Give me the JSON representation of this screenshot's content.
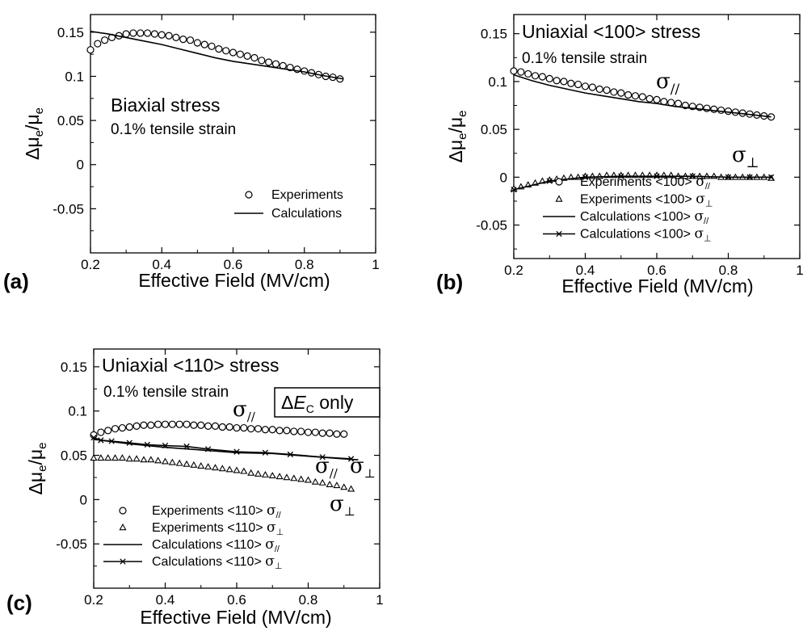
{
  "chart_data": [
    {
      "type": "scatter",
      "panel_label": "(a)",
      "xlabel": "Effective Field (MV/cm)",
      "ylabel": {
        "main": "Δμ",
        "sub1": "e",
        "slash": "/μ",
        "sub2": "e"
      },
      "xlim": [
        0.2,
        1.0
      ],
      "ylim": [
        -0.1,
        0.17
      ],
      "xticks": [
        "0.2",
        "0.4",
        "0.6",
        "0.8",
        "1"
      ],
      "yticks": [
        "-0.05",
        "0",
        "0.05",
        "0.1",
        "0.15"
      ],
      "annotations": [
        "Biaxial stress",
        "0.1% tensile strain"
      ],
      "legend": {
        "position": "bottom-right",
        "entries": [
          "Experiments",
          "Calculations"
        ]
      },
      "series": [
        {
          "name": "Experiments",
          "marker": "circle",
          "x": [
            0.2,
            0.22,
            0.24,
            0.26,
            0.28,
            0.3,
            0.32,
            0.34,
            0.36,
            0.38,
            0.4,
            0.42,
            0.44,
            0.46,
            0.48,
            0.5,
            0.52,
            0.54,
            0.56,
            0.58,
            0.6,
            0.62,
            0.64,
            0.66,
            0.68,
            0.7,
            0.72,
            0.74,
            0.76,
            0.78,
            0.8,
            0.82,
            0.84,
            0.86,
            0.88,
            0.9
          ],
          "y": [
            0.13,
            0.137,
            0.141,
            0.144,
            0.146,
            0.148,
            0.149,
            0.149,
            0.149,
            0.148,
            0.147,
            0.146,
            0.144,
            0.142,
            0.141,
            0.138,
            0.136,
            0.134,
            0.131,
            0.129,
            0.127,
            0.125,
            0.123,
            0.121,
            0.118,
            0.116,
            0.114,
            0.112,
            0.11,
            0.108,
            0.106,
            0.104,
            0.102,
            0.1,
            0.099,
            0.097
          ]
        },
        {
          "name": "Calculations",
          "marker": "line",
          "x": [
            0.2,
            0.25,
            0.3,
            0.35,
            0.4,
            0.45,
            0.5,
            0.55,
            0.6,
            0.65,
            0.7,
            0.75,
            0.8,
            0.85,
            0.91
          ],
          "y": [
            0.151,
            0.148,
            0.144,
            0.14,
            0.136,
            0.131,
            0.126,
            0.121,
            0.117,
            0.114,
            0.111,
            0.108,
            0.105,
            0.101,
            0.097
          ]
        }
      ]
    },
    {
      "type": "scatter",
      "panel_label": "(b)",
      "xlabel": "Effective Field (MV/cm)",
      "ylabel": {
        "main": "Δμ",
        "sub1": "e",
        "slash": "/μ",
        "sub2": "e"
      },
      "xlim": [
        0.2,
        1.0
      ],
      "ylim": [
        -0.085,
        0.17
      ],
      "xticks": [
        "0.2",
        "0.4",
        "0.6",
        "0.8",
        "1"
      ],
      "yticks": [
        "-0.05",
        "0",
        "0.05",
        "0.1",
        "0.15"
      ],
      "annotations": [
        "Uniaxial <100> stress",
        "0.1% tensile strain"
      ],
      "curve_labels": [
        {
          "base": "σ",
          "sub": "//"
        },
        {
          "base": "σ",
          "sub": "⊥"
        }
      ],
      "legend": {
        "position": "bottom-right",
        "entries": [
          {
            "text": "Experiments <100> ",
            "base": "σ",
            "sub": "//"
          },
          {
            "text": "Experiments <100> ",
            "base": "σ",
            "sub": "⊥"
          },
          {
            "text": "Calculations <100> ",
            "base": "σ",
            "sub": "//"
          },
          {
            "text": "Calculations <100> ",
            "base": "σ",
            "sub": "⊥"
          }
        ]
      },
      "series": [
        {
          "name": "Experiments <100> σ//",
          "marker": "circle",
          "x": [
            0.2,
            0.22,
            0.24,
            0.26,
            0.28,
            0.3,
            0.32,
            0.34,
            0.36,
            0.38,
            0.4,
            0.42,
            0.44,
            0.46,
            0.48,
            0.5,
            0.52,
            0.54,
            0.56,
            0.58,
            0.6,
            0.62,
            0.64,
            0.66,
            0.68,
            0.7,
            0.72,
            0.74,
            0.76,
            0.78,
            0.8,
            0.82,
            0.84,
            0.86,
            0.88,
            0.9,
            0.92
          ],
          "y": [
            0.111,
            0.11,
            0.108,
            0.106,
            0.105,
            0.103,
            0.101,
            0.1,
            0.098,
            0.097,
            0.095,
            0.094,
            0.092,
            0.091,
            0.089,
            0.088,
            0.086,
            0.085,
            0.084,
            0.082,
            0.081,
            0.079,
            0.078,
            0.077,
            0.075,
            0.074,
            0.073,
            0.072,
            0.071,
            0.07,
            0.069,
            0.068,
            0.067,
            0.066,
            0.065,
            0.064,
            0.063
          ]
        },
        {
          "name": "Experiments <100> σ⊥",
          "marker": "triangle",
          "x": [
            0.2,
            0.22,
            0.24,
            0.26,
            0.28,
            0.3,
            0.32,
            0.34,
            0.36,
            0.38,
            0.4,
            0.42,
            0.44,
            0.46,
            0.48,
            0.5,
            0.52,
            0.54,
            0.56,
            0.58,
            0.6,
            0.62,
            0.64,
            0.66,
            0.68,
            0.7,
            0.72,
            0.74,
            0.76,
            0.78,
            0.8,
            0.82,
            0.84,
            0.86,
            0.88,
            0.9,
            0.92
          ],
          "y": [
            -0.012,
            -0.01,
            -0.008,
            -0.006,
            -0.004,
            -0.003,
            -0.002,
            -0.001,
            0.0,
            0.0,
            0.001,
            0.001,
            0.001,
            0.002,
            0.002,
            0.002,
            0.002,
            0.002,
            0.002,
            0.002,
            0.002,
            0.002,
            0.002,
            0.001,
            0.001,
            0.001,
            0.001,
            0.001,
            0.001,
            0.0,
            0.0,
            0.0,
            0.0,
            0.0,
            0.0,
            0.0,
            -0.001
          ]
        },
        {
          "name": "Calculations <100> σ//",
          "marker": "line",
          "x": [
            0.2,
            0.25,
            0.3,
            0.35,
            0.4,
            0.45,
            0.5,
            0.55,
            0.6,
            0.65,
            0.7,
            0.75,
            0.8,
            0.85,
            0.92
          ],
          "y": [
            0.107,
            0.101,
            0.096,
            0.092,
            0.088,
            0.085,
            0.082,
            0.079,
            0.077,
            0.074,
            0.072,
            0.07,
            0.068,
            0.066,
            0.063
          ]
        },
        {
          "name": "Calculations <100> σ⊥",
          "marker": "line-x",
          "x": [
            0.2,
            0.3,
            0.4,
            0.5,
            0.6,
            0.7,
            0.8,
            0.86,
            0.92
          ],
          "y": [
            -0.013,
            -0.004,
            0.0,
            0.001,
            0.001,
            0.001,
            0.0,
            0.0,
            0.0
          ]
        }
      ]
    },
    {
      "type": "scatter",
      "panel_label": "(c)",
      "xlabel": "Effective Field (MV/cm)",
      "ylabel": {
        "main": "Δμ",
        "sub1": "e",
        "slash": "/μ",
        "sub2": "e"
      },
      "xlim": [
        0.2,
        1.0
      ],
      "ylim": [
        -0.1,
        0.17
      ],
      "xticks": [
        "0.2",
        "0.4",
        "0.6",
        "0.8",
        "1"
      ],
      "yticks": [
        "-0.05",
        "0",
        "0.05",
        "0.1",
        "0.15"
      ],
      "annotations": [
        "Uniaxial <110> stress",
        "0.1% tensile strain"
      ],
      "boxed_note": {
        "prefix": "Δ",
        "var": "E",
        "sub": "C",
        "suffix": " only"
      },
      "curve_labels": [
        {
          "base": "σ",
          "sub": "//"
        },
        {
          "base": "σ",
          "sub": "//"
        },
        {
          "base": "σ",
          "sub": "⊥"
        },
        {
          "base": "σ",
          "sub": "⊥"
        }
      ],
      "legend": {
        "position": "bottom-left",
        "entries": [
          {
            "text": "Experiments <110> ",
            "base": "σ",
            "sub": "//"
          },
          {
            "text": "Experiments <110> ",
            "base": "σ",
            "sub": "⊥"
          },
          {
            "text": "Calculations <110> ",
            "base": "σ",
            "sub": "//"
          },
          {
            "text": "Calculations <110> ",
            "base": "σ",
            "sub": "⊥"
          }
        ]
      },
      "series": [
        {
          "name": "Experiments <110> σ//",
          "marker": "circle",
          "x": [
            0.2,
            0.22,
            0.24,
            0.26,
            0.28,
            0.3,
            0.32,
            0.34,
            0.36,
            0.38,
            0.4,
            0.42,
            0.44,
            0.46,
            0.48,
            0.5,
            0.52,
            0.54,
            0.56,
            0.58,
            0.6,
            0.62,
            0.64,
            0.66,
            0.68,
            0.7,
            0.72,
            0.74,
            0.76,
            0.78,
            0.8,
            0.82,
            0.84,
            0.86,
            0.88,
            0.9
          ],
          "y": [
            0.073,
            0.076,
            0.078,
            0.08,
            0.081,
            0.082,
            0.083,
            0.084,
            0.084,
            0.085,
            0.085,
            0.085,
            0.085,
            0.085,
            0.084,
            0.084,
            0.083,
            0.083,
            0.082,
            0.082,
            0.081,
            0.081,
            0.08,
            0.08,
            0.079,
            0.079,
            0.078,
            0.078,
            0.077,
            0.077,
            0.076,
            0.076,
            0.075,
            0.075,
            0.074,
            0.074
          ]
        },
        {
          "name": "Experiments <110> σ⊥",
          "marker": "triangle",
          "x": [
            0.2,
            0.22,
            0.24,
            0.26,
            0.28,
            0.3,
            0.32,
            0.34,
            0.36,
            0.38,
            0.4,
            0.42,
            0.44,
            0.46,
            0.48,
            0.5,
            0.52,
            0.54,
            0.56,
            0.58,
            0.6,
            0.62,
            0.64,
            0.66,
            0.68,
            0.7,
            0.72,
            0.74,
            0.76,
            0.78,
            0.8,
            0.82,
            0.84,
            0.86,
            0.88,
            0.9,
            0.92
          ],
          "y": [
            0.047,
            0.047,
            0.047,
            0.047,
            0.047,
            0.046,
            0.046,
            0.045,
            0.045,
            0.044,
            0.043,
            0.042,
            0.041,
            0.04,
            0.039,
            0.038,
            0.037,
            0.036,
            0.035,
            0.034,
            0.033,
            0.032,
            0.03,
            0.029,
            0.028,
            0.027,
            0.026,
            0.025,
            0.024,
            0.023,
            0.022,
            0.02,
            0.019,
            0.017,
            0.016,
            0.014,
            0.012
          ]
        },
        {
          "name": "Calculations <110> σ//",
          "marker": "line",
          "x": [
            0.2,
            0.3,
            0.4,
            0.5,
            0.6,
            0.7,
            0.8,
            0.9,
            0.94
          ],
          "y": [
            0.068,
            0.063,
            0.059,
            0.056,
            0.053,
            0.052,
            0.049,
            0.046,
            0.045
          ]
        },
        {
          "name": "Calculations <110> σ⊥",
          "marker": "line-x",
          "x": [
            0.2,
            0.22,
            0.25,
            0.3,
            0.35,
            0.4,
            0.46,
            0.52,
            0.6,
            0.68,
            0.75,
            0.84,
            0.92
          ],
          "y": [
            0.07,
            0.067,
            0.066,
            0.064,
            0.062,
            0.061,
            0.06,
            0.057,
            0.054,
            0.053,
            0.051,
            0.048,
            0.046
          ]
        }
      ]
    }
  ]
}
